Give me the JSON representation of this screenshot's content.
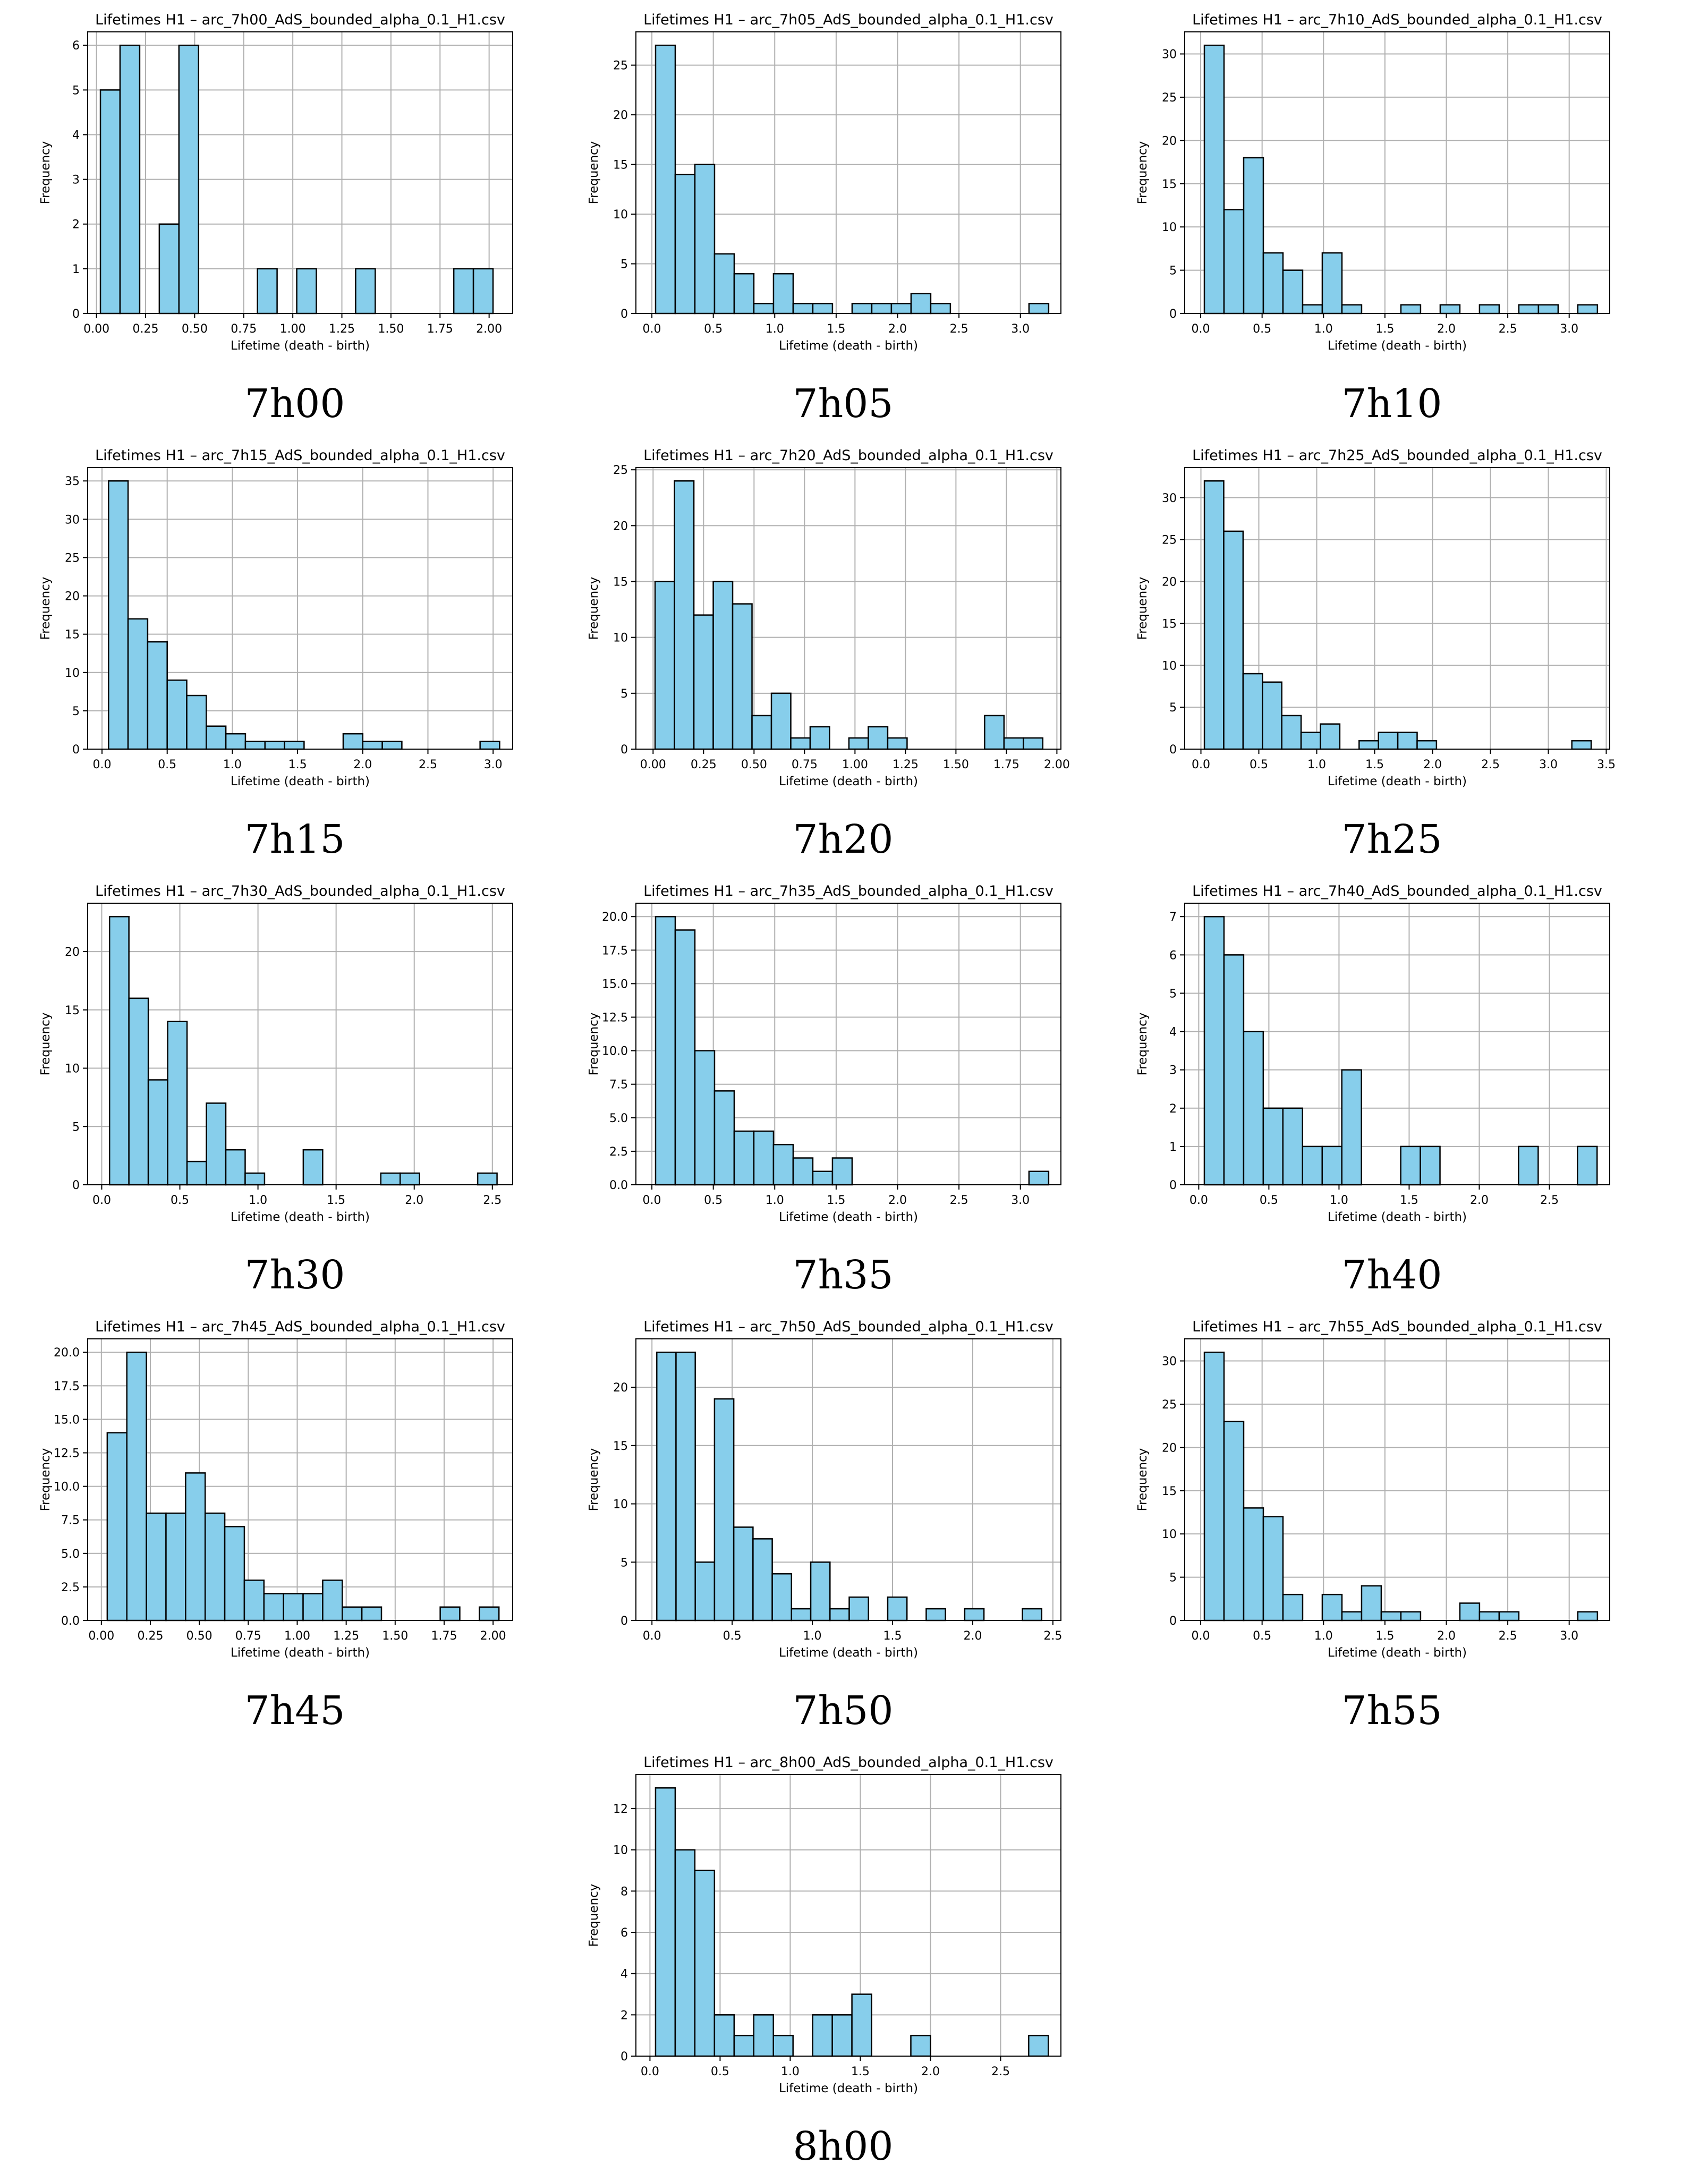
{
  "figure": {
    "bar_color": "#87ceeb",
    "edge_color": "#000000",
    "grid_color": "#b0b0b0"
  },
  "chart_data": [
    {
      "type": "bar",
      "caption": "7h00",
      "title": "Lifetimes H1 – arc_7h00_AdS_bounded_alpha_0.1_H1.csv",
      "xlabel": "Lifetime (death - birth)",
      "ylabel": "Frequency",
      "xlim": [
        -0.045,
        2.12
      ],
      "xticks": [
        0,
        0.25,
        0.5,
        0.75,
        1,
        1.25,
        1.5,
        1.75,
        2
      ],
      "xticklabels": [
        "0.00",
        "0.25",
        "0.50",
        "0.75",
        "1.00",
        "1.25",
        "1.50",
        "1.75",
        "2.00"
      ],
      "ylim": [
        0,
        6.3
      ],
      "yticks": [
        0,
        1,
        2,
        3,
        4,
        5,
        6
      ],
      "yticklabels": [
        "0",
        "1",
        "2",
        "3",
        "4",
        "5",
        "6"
      ],
      "bin_start": 0.02,
      "bin_width": 0.1,
      "values": [
        5,
        6,
        0,
        2,
        6,
        0,
        0,
        0,
        1,
        0,
        1,
        0,
        0,
        1,
        0,
        0,
        0,
        0,
        1,
        1
      ]
    },
    {
      "type": "bar",
      "caption": "7h05",
      "title": "Lifetimes H1 – arc_7h05_AdS_bounded_alpha_0.1_H1.csv",
      "xlabel": "Lifetime (death - birth)",
      "ylabel": "Frequency",
      "xlim": [
        -0.13,
        3.33
      ],
      "xticks": [
        0,
        0.5,
        1,
        1.5,
        2,
        2.5,
        3
      ],
      "xticklabels": [
        "0.0",
        "0.5",
        "1.0",
        "1.5",
        "2.0",
        "2.5",
        "3.0"
      ],
      "ylim": [
        0,
        28.35
      ],
      "yticks": [
        0,
        5,
        10,
        15,
        20,
        25
      ],
      "yticklabels": [
        "0",
        "5",
        "10",
        "15",
        "20",
        "25"
      ],
      "bin_start": 0.03,
      "bin_width": 0.16,
      "values": [
        27,
        14,
        15,
        6,
        4,
        1,
        4,
        1,
        1,
        0,
        1,
        1,
        1,
        2,
        1,
        0,
        0,
        0,
        0,
        1
      ]
    },
    {
      "type": "bar",
      "caption": "7h10",
      "title": "Lifetimes H1 – arc_7h10_AdS_bounded_alpha_0.1_H1.csv",
      "xlabel": "Lifetime (death - birth)",
      "ylabel": "Frequency",
      "xlim": [
        -0.13,
        3.33
      ],
      "xticks": [
        0,
        0.5,
        1,
        1.5,
        2,
        2.5,
        3
      ],
      "xticklabels": [
        "0.0",
        "0.5",
        "1.0",
        "1.5",
        "2.0",
        "2.5",
        "3.0"
      ],
      "ylim": [
        0,
        32.55
      ],
      "yticks": [
        0,
        5,
        10,
        15,
        20,
        25,
        30
      ],
      "yticklabels": [
        "0",
        "5",
        "10",
        "15",
        "20",
        "25",
        "30"
      ],
      "bin_start": 0.03,
      "bin_width": 0.16,
      "values": [
        31,
        12,
        18,
        7,
        5,
        1,
        7,
        1,
        0,
        0,
        1,
        0,
        1,
        0,
        1,
        0,
        1,
        1,
        0,
        1
      ]
    },
    {
      "type": "bar",
      "caption": "7h15",
      "title": "Lifetimes H1 – arc_7h15_AdS_bounded_alpha_0.1_H1.csv",
      "xlabel": "Lifetime (death - birth)",
      "ylabel": "Frequency",
      "xlim": [
        -0.11,
        3.15
      ],
      "xticks": [
        0,
        0.5,
        1,
        1.5,
        2,
        2.5,
        3
      ],
      "xticklabels": [
        "0.0",
        "0.5",
        "1.0",
        "1.5",
        "2.0",
        "2.5",
        "3.0"
      ],
      "ylim": [
        0,
        36.75
      ],
      "yticks": [
        0,
        5,
        10,
        15,
        20,
        25,
        30,
        35
      ],
      "yticklabels": [
        "0",
        "5",
        "10",
        "15",
        "20",
        "25",
        "30",
        "35"
      ],
      "bin_start": 0.05,
      "bin_width": 0.15,
      "values": [
        35,
        17,
        14,
        9,
        7,
        3,
        2,
        1,
        1,
        1,
        0,
        0,
        2,
        1,
        1,
        0,
        0,
        0,
        0,
        1
      ]
    },
    {
      "type": "bar",
      "caption": "7h20",
      "title": "Lifetimes H1 – arc_7h20_AdS_bounded_alpha_0.1_H1.csv",
      "xlabel": "Lifetime (death - birth)",
      "ylabel": "Frequency",
      "xlim": [
        -0.085,
        2.02
      ],
      "xticks": [
        0,
        0.25,
        0.5,
        0.75,
        1,
        1.25,
        1.5,
        1.75,
        2
      ],
      "xticklabels": [
        "0.00",
        "0.25",
        "0.50",
        "0.75",
        "1.00",
        "1.25",
        "1.50",
        "1.75",
        "2.00"
      ],
      "ylim": [
        0,
        25.2
      ],
      "yticks": [
        0,
        5,
        10,
        15,
        20,
        25
      ],
      "yticklabels": [
        "0",
        "5",
        "10",
        "15",
        "20",
        "25"
      ],
      "bin_start": 0.01,
      "bin_width": 0.096,
      "values": [
        15,
        24,
        12,
        15,
        13,
        3,
        5,
        1,
        2,
        0,
        1,
        2,
        1,
        0,
        0,
        0,
        0,
        3,
        1,
        1
      ]
    },
    {
      "type": "bar",
      "caption": "7h25",
      "title": "Lifetimes H1 – arc_7h25_AdS_bounded_alpha_0.1_H1.csv",
      "xlabel": "Lifetime (death - birth)",
      "ylabel": "Frequency",
      "xlim": [
        -0.14,
        3.53
      ],
      "xticks": [
        0,
        0.5,
        1,
        1.5,
        2,
        2.5,
        3,
        3.5
      ],
      "xticklabels": [
        "0.0",
        "0.5",
        "1.0",
        "1.5",
        "2.0",
        "2.5",
        "3.0",
        "3.5"
      ],
      "ylim": [
        0,
        33.6
      ],
      "yticks": [
        0,
        5,
        10,
        15,
        20,
        25,
        30
      ],
      "yticklabels": [
        "0",
        "5",
        "10",
        "15",
        "20",
        "25",
        "30"
      ],
      "bin_start": 0.03,
      "bin_width": 0.167,
      "values": [
        32,
        26,
        9,
        8,
        4,
        2,
        3,
        0,
        1,
        2,
        2,
        1,
        0,
        0,
        0,
        0,
        0,
        0,
        0,
        1
      ]
    },
    {
      "type": "bar",
      "caption": "7h30",
      "title": "Lifetimes H1 – arc_7h30_AdS_bounded_alpha_0.1_H1.csv",
      "xlabel": "Lifetime (death - birth)",
      "ylabel": "Frequency",
      "xlim": [
        -0.09,
        2.63
      ],
      "xticks": [
        0,
        0.5,
        1,
        1.5,
        2,
        2.5
      ],
      "xticklabels": [
        "0.0",
        "0.5",
        "1.0",
        "1.5",
        "2.0",
        "2.5"
      ],
      "ylim": [
        0,
        24.15
      ],
      "yticks": [
        0,
        5,
        10,
        15,
        20
      ],
      "yticklabels": [
        "0",
        "5",
        "10",
        "15",
        "20"
      ],
      "bin_start": 0.05,
      "bin_width": 0.124,
      "values": [
        23,
        16,
        9,
        14,
        2,
        7,
        3,
        1,
        0,
        0,
        3,
        0,
        0,
        0,
        1,
        1,
        0,
        0,
        0,
        1
      ]
    },
    {
      "type": "bar",
      "caption": "7h35",
      "title": "Lifetimes H1 – arc_7h35_AdS_bounded_alpha_0.1_H1.csv",
      "xlabel": "Lifetime (death - birth)",
      "ylabel": "Frequency",
      "xlim": [
        -0.13,
        3.33
      ],
      "xticks": [
        0,
        0.5,
        1,
        1.5,
        2,
        2.5,
        3
      ],
      "xticklabels": [
        "0.0",
        "0.5",
        "1.0",
        "1.5",
        "2.0",
        "2.5",
        "3.0"
      ],
      "ylim": [
        0,
        21
      ],
      "yticks": [
        0,
        2.5,
        5,
        7.5,
        10,
        12.5,
        15,
        17.5,
        20
      ],
      "yticklabels": [
        "0.0",
        "2.5",
        "5.0",
        "7.5",
        "10.0",
        "12.5",
        "15.0",
        "17.5",
        "20.0"
      ],
      "bin_start": 0.03,
      "bin_width": 0.16,
      "values": [
        20,
        19,
        10,
        7,
        4,
        4,
        3,
        2,
        1,
        2,
        0,
        0,
        0,
        0,
        0,
        0,
        0,
        0,
        0,
        1
      ]
    },
    {
      "type": "bar",
      "caption": "7h40",
      "title": "Lifetimes H1 – arc_7h40_AdS_bounded_alpha_0.1_H1.csv",
      "xlabel": "Lifetime (death - birth)",
      "ylabel": "Frequency",
      "xlim": [
        -0.1,
        2.93
      ],
      "xticks": [
        0,
        0.5,
        1,
        1.5,
        2,
        2.5
      ],
      "xticklabels": [
        "0.0",
        "0.5",
        "1.0",
        "1.5",
        "2.0",
        "2.5"
      ],
      "ylim": [
        0,
        7.35
      ],
      "yticks": [
        0,
        1,
        2,
        3,
        4,
        5,
        6,
        7
      ],
      "yticklabels": [
        "0",
        "1",
        "2",
        "3",
        "4",
        "5",
        "6",
        "7"
      ],
      "bin_start": 0.04,
      "bin_width": 0.14,
      "values": [
        7,
        6,
        4,
        2,
        2,
        1,
        1,
        3,
        0,
        0,
        1,
        1,
        0,
        0,
        0,
        0,
        1,
        0,
        0,
        1
      ]
    },
    {
      "type": "bar",
      "caption": "7h45",
      "title": "Lifetimes H1 – arc_7h45_AdS_bounded_alpha_0.1_H1.csv",
      "xlabel": "Lifetime (death - birth)",
      "ylabel": "Frequency",
      "xlim": [
        -0.07,
        2.1
      ],
      "xticks": [
        0,
        0.25,
        0.5,
        0.75,
        1,
        1.25,
        1.5,
        1.75,
        2
      ],
      "xticklabels": [
        "0.00",
        "0.25",
        "0.50",
        "0.75",
        "1.00",
        "1.25",
        "1.50",
        "1.75",
        "2.00"
      ],
      "ylim": [
        0,
        21
      ],
      "yticks": [
        0,
        2.5,
        5,
        7.5,
        10,
        12.5,
        15,
        17.5,
        20
      ],
      "yticklabels": [
        "0.0",
        "2.5",
        "5.0",
        "7.5",
        "10.0",
        "12.5",
        "15.0",
        "17.5",
        "20.0"
      ],
      "bin_start": 0.03,
      "bin_width": 0.1,
      "values": [
        14,
        20,
        8,
        8,
        11,
        8,
        7,
        3,
        2,
        2,
        2,
        3,
        1,
        1,
        0,
        0,
        0,
        1,
        0,
        1
      ]
    },
    {
      "type": "bar",
      "caption": "7h50",
      "title": "Lifetimes H1 – arc_7h50_AdS_bounded_alpha_0.1_H1.csv",
      "xlabel": "Lifetime (death - birth)",
      "ylabel": "Frequency",
      "xlim": [
        -0.1,
        2.55
      ],
      "xticks": [
        0,
        0.5,
        1,
        1.5,
        2,
        2.5
      ],
      "xticklabels": [
        "0.0",
        "0.5",
        "1.0",
        "1.5",
        "2.0",
        "2.5"
      ],
      "ylim": [
        0,
        24.15
      ],
      "yticks": [
        0,
        5,
        10,
        15,
        20
      ],
      "yticklabels": [
        "0",
        "5",
        "10",
        "15",
        "20"
      ],
      "bin_start": 0.03,
      "bin_width": 0.12,
      "values": [
        23,
        23,
        5,
        19,
        8,
        7,
        4,
        1,
        5,
        1,
        2,
        0,
        2,
        0,
        1,
        0,
        1,
        0,
        0,
        1
      ]
    },
    {
      "type": "bar",
      "caption": "7h55",
      "title": "Lifetimes H1 – arc_7h55_AdS_bounded_alpha_0.1_H1.csv",
      "xlabel": "Lifetime (death - birth)",
      "ylabel": "Frequency",
      "xlim": [
        -0.13,
        3.33
      ],
      "xticks": [
        0,
        0.5,
        1,
        1.5,
        2,
        2.5,
        3
      ],
      "xticklabels": [
        "0.0",
        "0.5",
        "1.0",
        "1.5",
        "2.0",
        "2.5",
        "3.0"
      ],
      "ylim": [
        0,
        32.55
      ],
      "yticks": [
        0,
        5,
        10,
        15,
        20,
        25,
        30
      ],
      "yticklabels": [
        "0",
        "5",
        "10",
        "15",
        "20",
        "25",
        "30"
      ],
      "bin_start": 0.03,
      "bin_width": 0.16,
      "values": [
        31,
        23,
        13,
        12,
        3,
        0,
        3,
        1,
        4,
        1,
        1,
        0,
        0,
        2,
        1,
        1,
        0,
        0,
        0,
        1
      ]
    },
    {
      "type": "bar",
      "caption": "8h00",
      "title": "Lifetimes H1 – arc_8h00_AdS_bounded_alpha_0.1_H1.csv",
      "xlabel": "Lifetime (death - birth)",
      "ylabel": "Frequency",
      "xlim": [
        -0.1,
        2.93
      ],
      "xticks": [
        0,
        0.5,
        1,
        1.5,
        2,
        2.5
      ],
      "xticklabels": [
        "0.0",
        "0.5",
        "1.0",
        "1.5",
        "2.0",
        "2.5"
      ],
      "ylim": [
        0,
        13.65
      ],
      "yticks": [
        0,
        2,
        4,
        6,
        8,
        10,
        12
      ],
      "yticklabels": [
        "0",
        "2",
        "4",
        "6",
        "8",
        "10",
        "12"
      ],
      "bin_start": 0.04,
      "bin_width": 0.14,
      "values": [
        13,
        10,
        9,
        2,
        1,
        2,
        1,
        0,
        2,
        2,
        3,
        0,
        0,
        1,
        0,
        0,
        0,
        0,
        0,
        1
      ]
    }
  ]
}
